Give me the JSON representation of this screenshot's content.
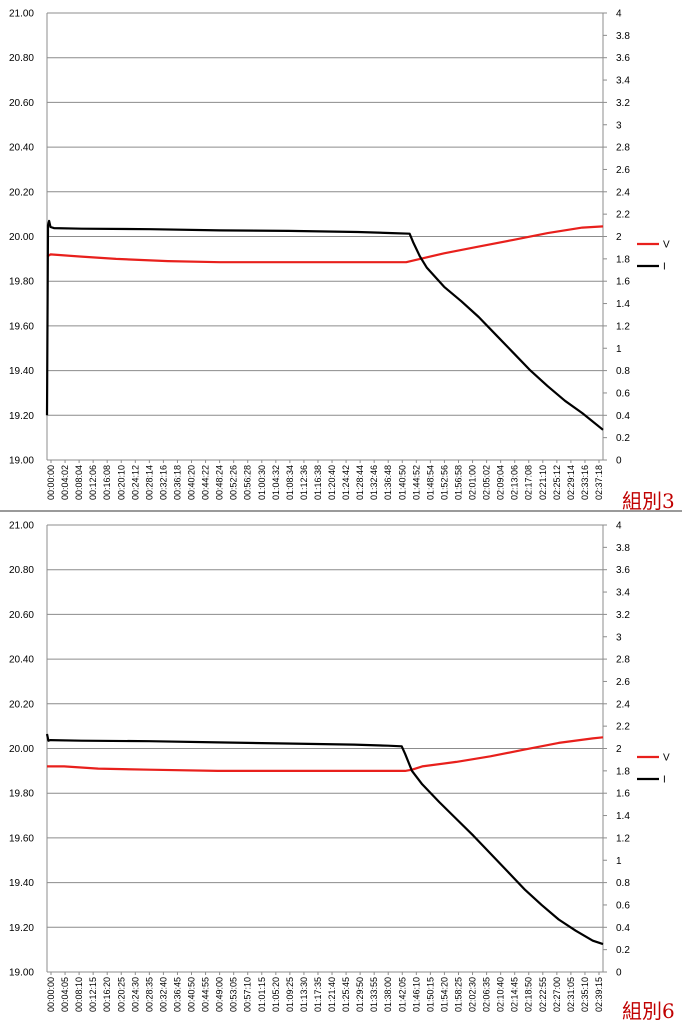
{
  "chart_data": [
    {
      "type": "line",
      "group_label": "組別3",
      "xlabel": "",
      "ylabel": "",
      "y_left_lim": [
        19.0,
        21.0
      ],
      "y_left_ticks": [
        "19.00",
        "19.20",
        "19.40",
        "19.60",
        "19.80",
        "20.00",
        "20.20",
        "20.40",
        "20.60",
        "20.80",
        "21.00"
      ],
      "y_right_lim": [
        0,
        4
      ],
      "y_right_ticks": [
        "0",
        "0.2",
        "0.4",
        "0.6",
        "0.8",
        "1",
        "1.2",
        "1.4",
        "1.6",
        "1.8",
        "2",
        "2.2",
        "2.4",
        "2.6",
        "2.8",
        "3",
        "3.2",
        "3.4",
        "3.6",
        "3.8",
        "4"
      ],
      "x_categories": [
        "00:00:00",
        "00:04:02",
        "00:08:04",
        "00:12:06",
        "00:16:08",
        "00:20:10",
        "00:24:12",
        "00:28:14",
        "00:32:16",
        "00:36:18",
        "00:40:20",
        "00:44:22",
        "00:48:24",
        "00:52:26",
        "00:56:28",
        "01:00:30",
        "01:04:32",
        "01:08:34",
        "01:12:36",
        "01:16:38",
        "01:20:40",
        "01:24:42",
        "01:28:44",
        "01:32:46",
        "01:36:48",
        "01:40:50",
        "01:44:52",
        "01:48:54",
        "01:52:56",
        "01:56:58",
        "02:01:00",
        "02:05:02",
        "02:09:04",
        "02:13:06",
        "02:17:08",
        "02:21:10",
        "02:25:12",
        "02:29:14",
        "02:33:16",
        "02:37:18"
      ],
      "x_range_minutes": [
        0,
        161
      ],
      "legend_position": "right",
      "grid": true,
      "series": [
        {
          "name": "V",
          "axis": "left",
          "color": "#e8201c",
          "points": [
            [
              0,
              19.91
            ],
            [
              1,
              19.92
            ],
            [
              10,
              19.91
            ],
            [
              20,
              19.9
            ],
            [
              35,
              19.89
            ],
            [
              50,
              19.885
            ],
            [
              70,
              19.885
            ],
            [
              90,
              19.885
            ],
            [
              100,
              19.885
            ],
            [
              104,
              19.885
            ],
            [
              108,
              19.9
            ],
            [
              115,
              19.925
            ],
            [
              125,
              19.955
            ],
            [
              135,
              19.985
            ],
            [
              145,
              20.015
            ],
            [
              155,
              20.04
            ],
            [
              161,
              20.045
            ]
          ]
        },
        {
          "name": "I",
          "axis": "right",
          "color": "#000000",
          "points": [
            [
              0,
              0.4
            ],
            [
              0.3,
              2.1
            ],
            [
              0.6,
              2.14
            ],
            [
              1,
              2.085
            ],
            [
              2,
              2.075
            ],
            [
              10,
              2.07
            ],
            [
              30,
              2.065
            ],
            [
              50,
              2.055
            ],
            [
              70,
              2.05
            ],
            [
              90,
              2.04
            ],
            [
              100,
              2.03
            ],
            [
              105,
              2.025
            ],
            [
              106,
              1.95
            ],
            [
              108,
              1.82
            ],
            [
              110,
              1.72
            ],
            [
              115,
              1.55
            ],
            [
              120,
              1.42
            ],
            [
              125,
              1.28
            ],
            [
              130,
              1.12
            ],
            [
              135,
              0.96
            ],
            [
              140,
              0.8
            ],
            [
              145,
              0.66
            ],
            [
              150,
              0.53
            ],
            [
              155,
              0.42
            ],
            [
              161,
              0.27
            ]
          ]
        }
      ]
    },
    {
      "type": "line",
      "group_label": "組別6",
      "xlabel": "",
      "ylabel": "",
      "y_left_lim": [
        19.0,
        21.0
      ],
      "y_left_ticks": [
        "19.00",
        "19.20",
        "19.40",
        "19.60",
        "19.80",
        "20.00",
        "20.20",
        "20.40",
        "20.60",
        "20.80",
        "21.00"
      ],
      "y_right_lim": [
        0,
        4
      ],
      "y_right_ticks": [
        "0",
        "0.2",
        "0.4",
        "0.6",
        "0.8",
        "1",
        "1.2",
        "1.4",
        "1.6",
        "1.8",
        "2",
        "2.2",
        "2.4",
        "2.6",
        "2.8",
        "3",
        "3.2",
        "3.4",
        "3.6",
        "3.8",
        "4"
      ],
      "x_categories": [
        "00:00:00",
        "00:04:05",
        "00:08:10",
        "00:12:15",
        "00:16:20",
        "00:20:25",
        "00:24:30",
        "00:28:35",
        "00:32:40",
        "00:36:45",
        "00:40:50",
        "00:44:55",
        "00:49:00",
        "00:53:05",
        "00:57:10",
        "01:01:15",
        "01:05:20",
        "01:09:25",
        "01:13:30",
        "01:17:35",
        "01:21:40",
        "01:25:45",
        "01:29:50",
        "01:33:55",
        "01:38:00",
        "01:42:05",
        "01:46:10",
        "01:50:15",
        "01:54:20",
        "01:58:25",
        "02:02:30",
        "02:06:35",
        "02:10:40",
        "02:14:45",
        "02:18:50",
        "02:22:55",
        "02:27:00",
        "02:31:05",
        "02:35:10",
        "02:39:15"
      ],
      "x_range_minutes": [
        0,
        163
      ],
      "legend_position": "right",
      "grid": true,
      "series": [
        {
          "name": "V",
          "axis": "left",
          "color": "#e8201c",
          "points": [
            [
              0,
              19.92
            ],
            [
              5,
              19.92
            ],
            [
              15,
              19.91
            ],
            [
              30,
              19.905
            ],
            [
              50,
              19.9
            ],
            [
              70,
              19.9
            ],
            [
              90,
              19.9
            ],
            [
              105,
              19.9
            ],
            [
              107,
              19.905
            ],
            [
              110,
              19.92
            ],
            [
              120,
              19.94
            ],
            [
              130,
              19.965
            ],
            [
              140,
              19.995
            ],
            [
              150,
              20.025
            ],
            [
              160,
              20.045
            ],
            [
              163,
              20.05
            ]
          ]
        },
        {
          "name": "I",
          "axis": "right",
          "color": "#000000",
          "points": [
            [
              0,
              2.13
            ],
            [
              0.4,
              2.07
            ],
            [
              1,
              2.075
            ],
            [
              10,
              2.07
            ],
            [
              30,
              2.065
            ],
            [
              50,
              2.055
            ],
            [
              70,
              2.045
            ],
            [
              90,
              2.035
            ],
            [
              100,
              2.025
            ],
            [
              104,
              2.02
            ],
            [
              105,
              1.95
            ],
            [
              107,
              1.8
            ],
            [
              110,
              1.68
            ],
            [
              115,
              1.52
            ],
            [
              120,
              1.37
            ],
            [
              125,
              1.22
            ],
            [
              130,
              1.06
            ],
            [
              135,
              0.9
            ],
            [
              140,
              0.74
            ],
            [
              145,
              0.6
            ],
            [
              150,
              0.47
            ],
            [
              155,
              0.37
            ],
            [
              160,
              0.28
            ],
            [
              163,
              0.25
            ]
          ]
        }
      ]
    }
  ]
}
